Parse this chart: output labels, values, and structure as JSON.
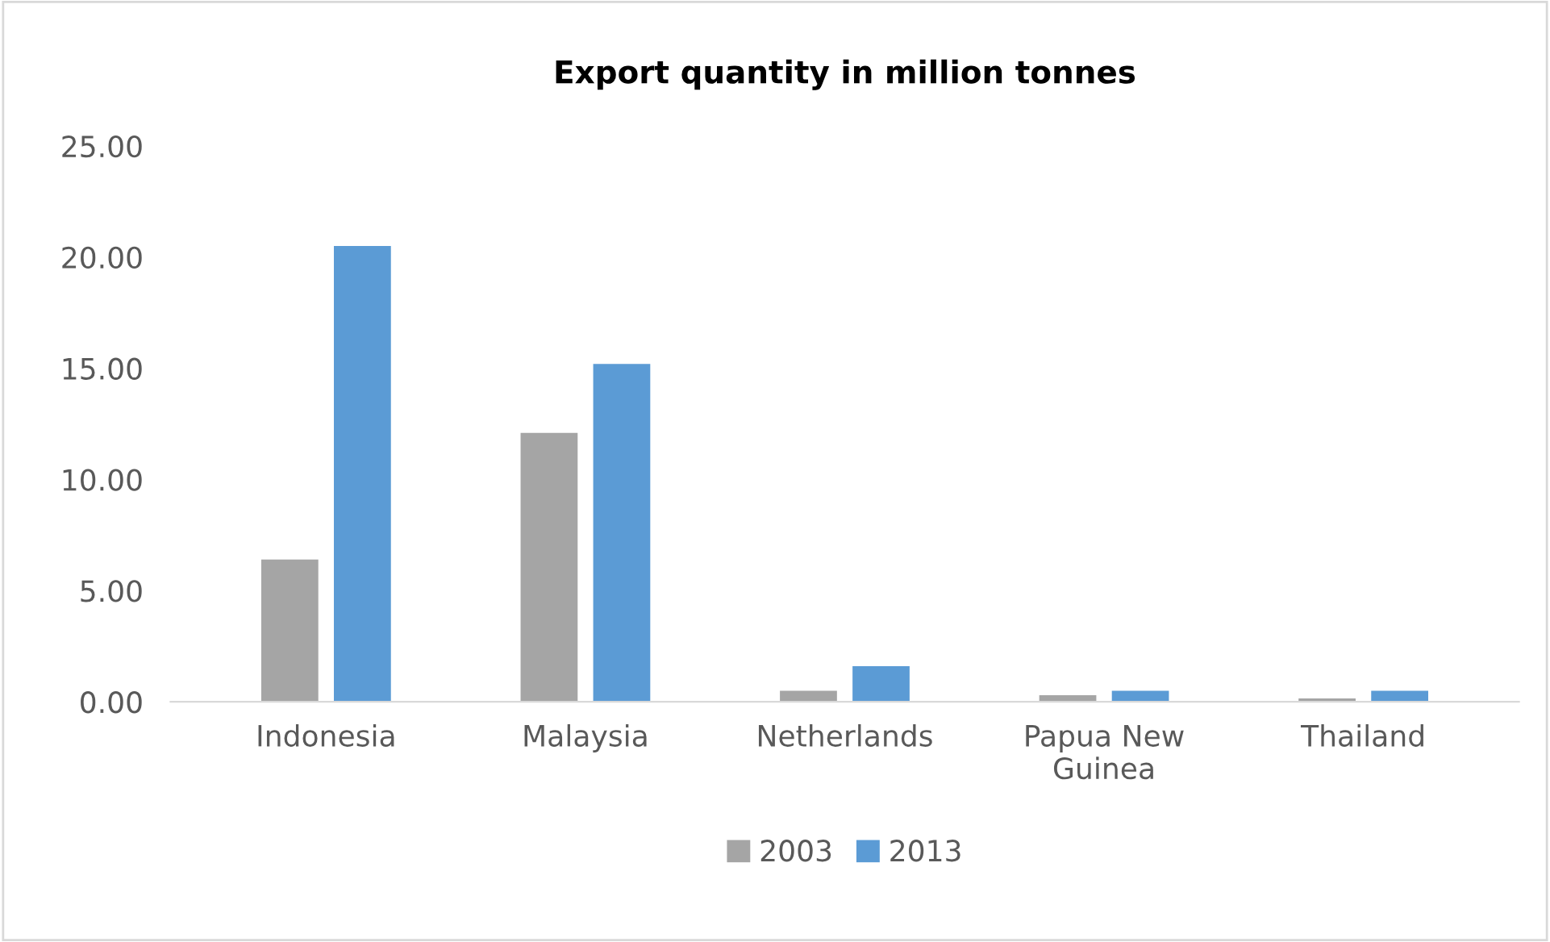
{
  "chart_data": {
    "type": "bar",
    "title": "Export quantity in million tonnes",
    "categories": [
      "Indonesia",
      "Malaysia",
      "Netherlands",
      "Papua New\nGuinea",
      "Thailand"
    ],
    "series": [
      {
        "name": "2003",
        "color": "#a5a5a5",
        "values": [
          6.4,
          12.1,
          0.5,
          0.3,
          0.15
        ]
      },
      {
        "name": "2013",
        "color": "#5b9bd5",
        "values": [
          20.5,
          15.2,
          1.6,
          0.5,
          0.5
        ]
      }
    ],
    "ylim": [
      0,
      25
    ],
    "yticks": [
      {
        "value": 0,
        "label": "0.00"
      },
      {
        "value": 5,
        "label": "5.00"
      },
      {
        "value": 10,
        "label": "10.00"
      },
      {
        "value": 15,
        "label": "15.00"
      },
      {
        "value": 20,
        "label": "20.00"
      },
      {
        "value": 25,
        "label": "25.00"
      }
    ],
    "grid": false,
    "legend": "bottom"
  }
}
